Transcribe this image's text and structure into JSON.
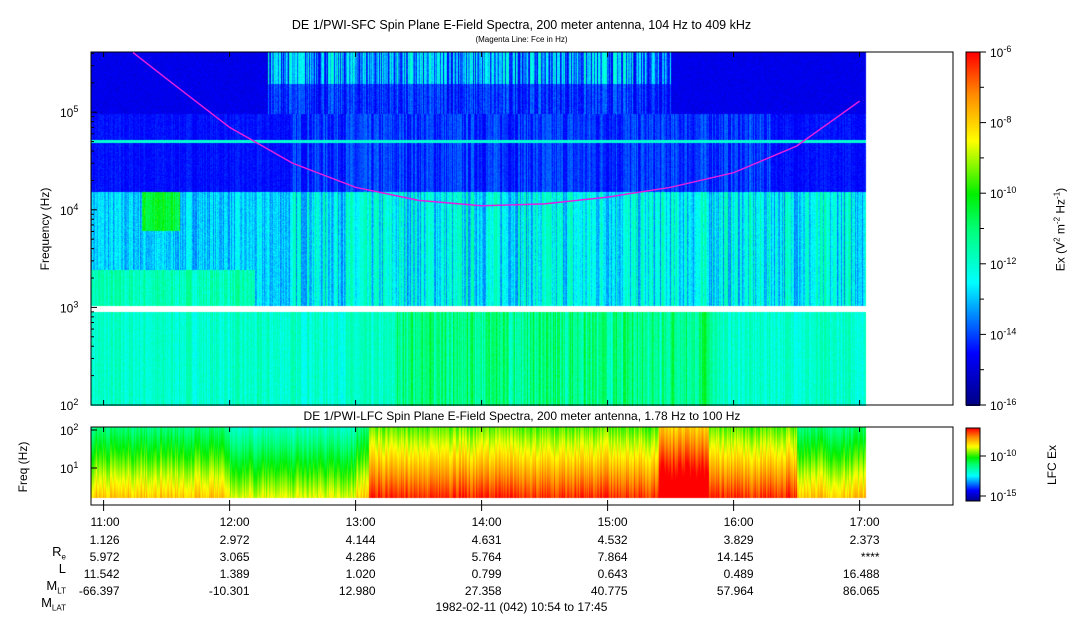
{
  "chart_data": [
    {
      "type": "heatmap",
      "title": "DE 1/PWI-SFC  Spin Plane E-Field Spectra, 200 meter antenna, 104 Hz to 409 kHz",
      "subtitle": "(Magenta Line: Fce in Hz)",
      "ylabel": "Frequency (Hz)",
      "yscale": "log",
      "ylim": [
        100,
        409000
      ],
      "yticks": [
        "10^2",
        "10^3",
        "10^4",
        "10^5"
      ],
      "xlim": [
        "10:54",
        "17:45"
      ],
      "xticks": [
        "11:00",
        "12:00",
        "13:00",
        "14:00",
        "15:00",
        "16:00",
        "17:00"
      ],
      "data_end": "17:03",
      "colorbar": {
        "label": "Ex (V^2 m^-2 Hz^-1)",
        "scale": "log",
        "range": [
          1e-16,
          1e-06
        ],
        "ticks": [
          "10^-6",
          "10^-8",
          "10^-10",
          "10^-12",
          "10^-14",
          "10^-16"
        ]
      },
      "fce_line": {
        "color": "#e020e0",
        "time": [
          "11:14",
          "11:30",
          "12:00",
          "12:30",
          "13:00",
          "13:30",
          "14:00",
          "14:30",
          "15:00",
          "15:30",
          "16:00",
          "16:30",
          "17:00"
        ],
        "fce_hz": [
          409000,
          220000,
          70000,
          30000,
          17000,
          12500,
          11000,
          11500,
          13500,
          17000,
          24000,
          45000,
          130000
        ]
      }
    },
    {
      "type": "heatmap",
      "title": "DE 1/PWI-LFC  Spin Plane E-Field Spectra, 200 meter antenna, 1.78 Hz to 100 Hz",
      "ylabel": "Freq (Hz)",
      "yscale": "log",
      "ylim": [
        1.78,
        100
      ],
      "yticks": [
        "10^2",
        "10^1"
      ],
      "colorbar": {
        "label": "LFC Ex",
        "scale": "log",
        "ticks": [
          "10^-10",
          "10^-15"
        ]
      }
    }
  ],
  "ephemeris": {
    "labels": [
      "Re",
      "L",
      "MLT",
      "MLAT"
    ],
    "times": [
      "11:00",
      "12:00",
      "13:00",
      "14:00",
      "15:00",
      "16:00",
      "17:00"
    ],
    "Re": [
      "1.126",
      "2.972",
      "4.144",
      "4.631",
      "4.532",
      "3.829",
      "2.373"
    ],
    "L": [
      "5.972",
      "3.065",
      "4.286",
      "5.764",
      "7.864",
      "14.145",
      "****"
    ],
    "MLT": [
      "11.542",
      "1.389",
      "1.020",
      "0.799",
      "0.643",
      "0.489",
      "16.488"
    ],
    "MLAT": [
      "-66.397",
      "-10.301",
      "12.980",
      "27.358",
      "40.775",
      "57.964",
      "86.065"
    ]
  },
  "footer": "1982-02-11 (042) 10:54 to 17:45"
}
